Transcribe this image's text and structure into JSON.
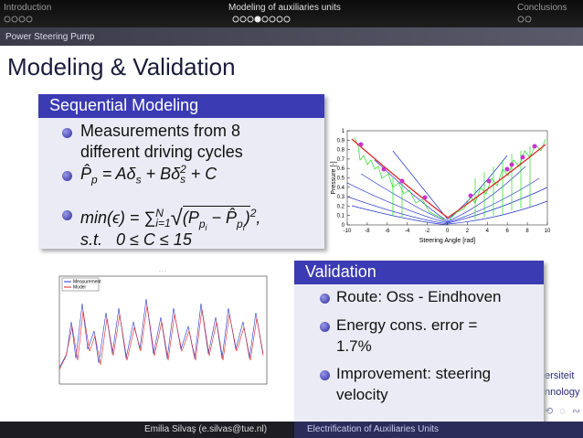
{
  "header": {
    "sections": [
      "Introduction",
      "Modeling of auxiliaries units",
      "Conclusions"
    ],
    "subsection": "Power Steering Pump"
  },
  "title": "Modeling & Validation",
  "sequential_block": {
    "title": "Sequential Modeling",
    "bullet_1": [
      "Measurements from 8",
      "different driving cycles"
    ],
    "formula_1": [
      "P̂",
      "p",
      " = Aδ",
      "s",
      " + Bδ",
      "s",
      "2",
      " + C"
    ],
    "formula_2": [
      "min(ϵ) = ",
      "∑",
      "N",
      "i=1",
      "(P",
      "p",
      "i",
      " − ",
      "P̂",
      "p",
      "i",
      ")",
      "2",
      ","
    ],
    "constraint": [
      "s.t.",
      "0 ≤ C ≤ 15"
    ]
  },
  "pressure_plot": {
    "ylabel": "Pressure [-]",
    "xlabel": "Steering Angle [rad]",
    "xlim": [
      -10,
      10
    ],
    "ylim": [
      0,
      1
    ],
    "xticks": [
      -10,
      -8,
      -6,
      -4,
      -2,
      0,
      2,
      4,
      6,
      8,
      10
    ],
    "yticks": [
      0,
      0.1,
      0.2,
      0.3,
      0.4,
      0.5,
      0.6,
      0.7,
      0.8,
      0.9,
      1
    ]
  },
  "validation_plot": {
    "legend": [
      "Measurement",
      "Model"
    ]
  },
  "validation_block": {
    "title": "Validation",
    "bullets": [
      "Route: Oss - Eindhoven",
      "Energy cons. error = 1.7%",
      "Improvement: steering velocity"
    ]
  },
  "logo_fragments": [
    "ersiteit",
    "nnology"
  ],
  "footer": {
    "author": "Emilia Silvaş (e.silvas@tue.nl)",
    "talk_title": "Electrification of Auxiliaries Units"
  }
}
